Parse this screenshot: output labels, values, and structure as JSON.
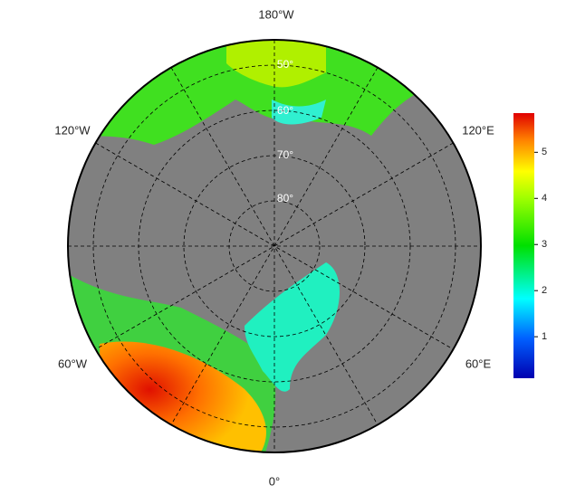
{
  "lon_labels": [
    "180°W",
    "120°W",
    "120°E",
    "60°W",
    "60°E",
    "0°"
  ],
  "lat_labels": [
    "50°",
    "60°",
    "70°",
    "80°"
  ],
  "colorbar": {
    "lim": [
      0.1,
      5.85
    ],
    "ticks": [
      1,
      2,
      3,
      4,
      5
    ]
  }
}
